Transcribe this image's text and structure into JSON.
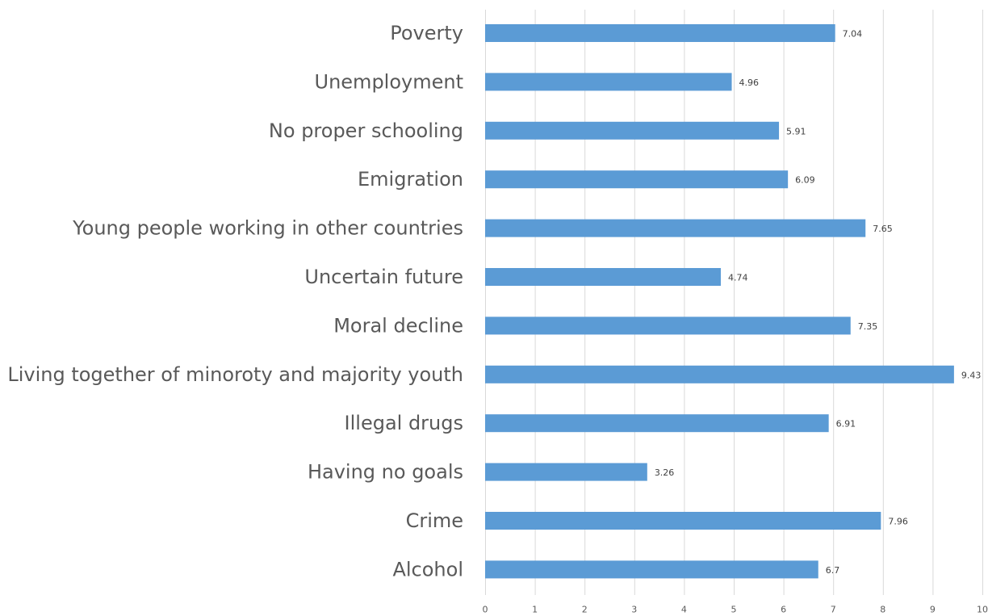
{
  "chart_data": {
    "type": "bar",
    "orientation": "horizontal",
    "categories": [
      "Poverty",
      "Unemployment",
      "No proper schooling",
      "Emigration",
      "Young people working in other countries",
      "Uncertain future",
      "Moral decline",
      "Living together of minoroty and majority youth",
      "Illegal drugs",
      "Having no goals",
      "Crime",
      "Alcohol"
    ],
    "values": [
      7.04,
      4.96,
      5.91,
      6.09,
      7.65,
      4.74,
      7.35,
      9.43,
      6.91,
      3.26,
      7.96,
      6.7
    ],
    "data_labels": [
      "7.04",
      "4.96",
      "5.91",
      "6.09",
      "7.65",
      "4.74",
      "7.35",
      "9.43",
      "6.91",
      "3.26",
      "7.96",
      "6.7"
    ],
    "xlim": [
      0,
      10
    ],
    "x_ticks": [
      "0",
      "1",
      "2",
      "3",
      "4",
      "5",
      "6",
      "7",
      "8",
      "9",
      "10"
    ],
    "bar_color": "#5b9bd5",
    "grid": true,
    "legend": "none"
  }
}
